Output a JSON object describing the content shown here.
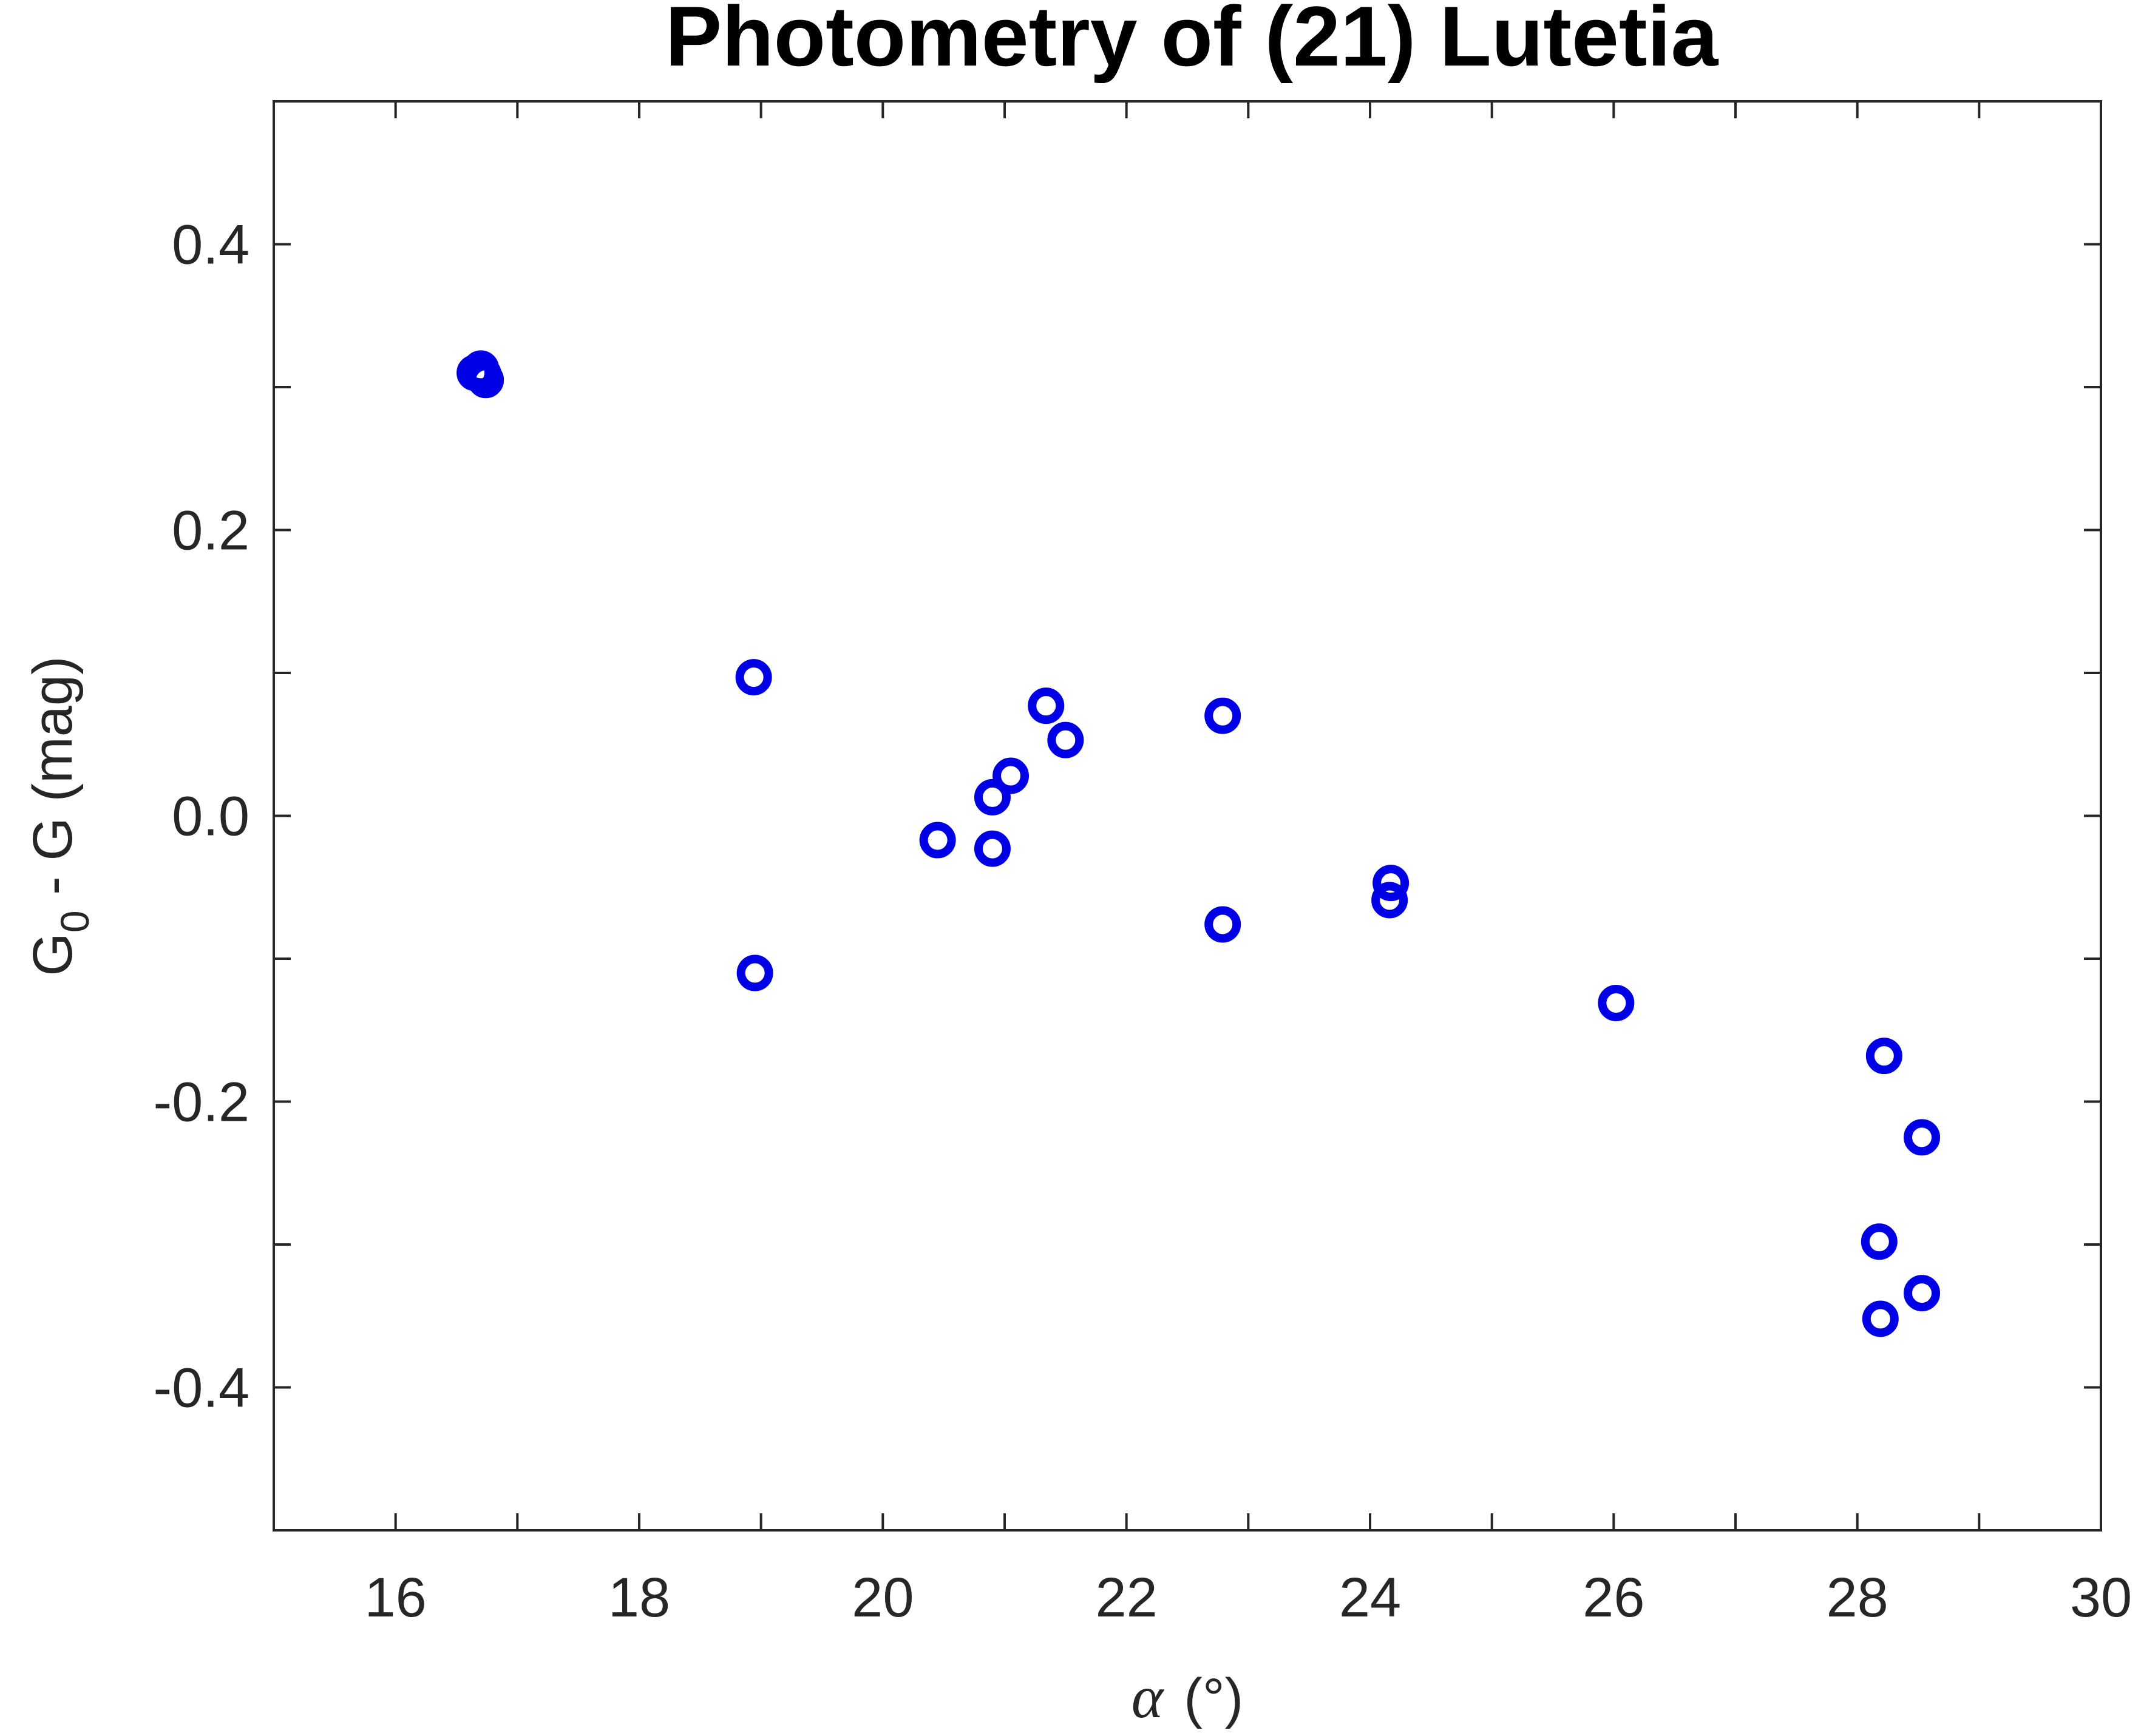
{
  "chart_data": {
    "type": "scatter",
    "title": "Photometry of (21) Lutetia",
    "xlabel": {
      "symbol": "α",
      "unit": "(°)"
    },
    "ylabel": {
      "main": "G",
      "subscript": "0",
      "rest": " - G (mag)"
    },
    "xlim": [
      15,
      30
    ],
    "ylim": [
      -0.5,
      0.5
    ],
    "x_ticks": [
      15,
      16,
      17,
      18,
      19,
      20,
      21,
      22,
      23,
      24,
      25,
      26,
      27,
      28,
      29,
      30
    ],
    "x_tick_labels": [
      "16",
      "18",
      "20",
      "22",
      "24",
      "26",
      "28",
      "30"
    ],
    "x_tick_label_values": [
      16,
      18,
      20,
      22,
      24,
      26,
      28,
      30
    ],
    "y_ticks": [
      -0.4,
      -0.3,
      -0.2,
      -0.1,
      0.0,
      0.1,
      0.2,
      0.3,
      0.4
    ],
    "y_tick_labels": [
      "0.4",
      "0.2",
      "0.0",
      "-0.2",
      "-0.4"
    ],
    "y_tick_label_values": [
      0.4,
      0.2,
      0.0,
      -0.2,
      -0.4
    ],
    "grid": false,
    "marker_color": "#0000e6",
    "series": [
      {
        "marker": "circle-open",
        "points": [
          {
            "x": 16.65,
            "y": 0.31
          },
          {
            "x": 16.7,
            "y": 0.313
          },
          {
            "x": 16.74,
            "y": 0.305
          },
          {
            "x": 16.72,
            "y": 0.309
          },
          {
            "x": 18.94,
            "y": 0.097
          },
          {
            "x": 18.95,
            "y": -0.11
          },
          {
            "x": 20.45,
            "y": -0.017
          },
          {
            "x": 20.9,
            "y": 0.013
          },
          {
            "x": 20.9,
            "y": -0.023
          },
          {
            "x": 21.05,
            "y": 0.028
          },
          {
            "x": 21.34,
            "y": 0.077
          },
          {
            "x": 21.5,
            "y": 0.053
          },
          {
            "x": 22.79,
            "y": 0.07
          },
          {
            "x": 22.79,
            "y": -0.076
          },
          {
            "x": 24.17,
            "y": -0.047
          },
          {
            "x": 24.16,
            "y": -0.059
          },
          {
            "x": 26.02,
            "y": -0.131
          },
          {
            "x": 28.22,
            "y": -0.168
          },
          {
            "x": 28.53,
            "y": -0.225
          },
          {
            "x": 28.18,
            "y": -0.298
          },
          {
            "x": 28.53,
            "y": -0.334
          },
          {
            "x": 28.19,
            "y": -0.352
          }
        ]
      }
    ]
  }
}
